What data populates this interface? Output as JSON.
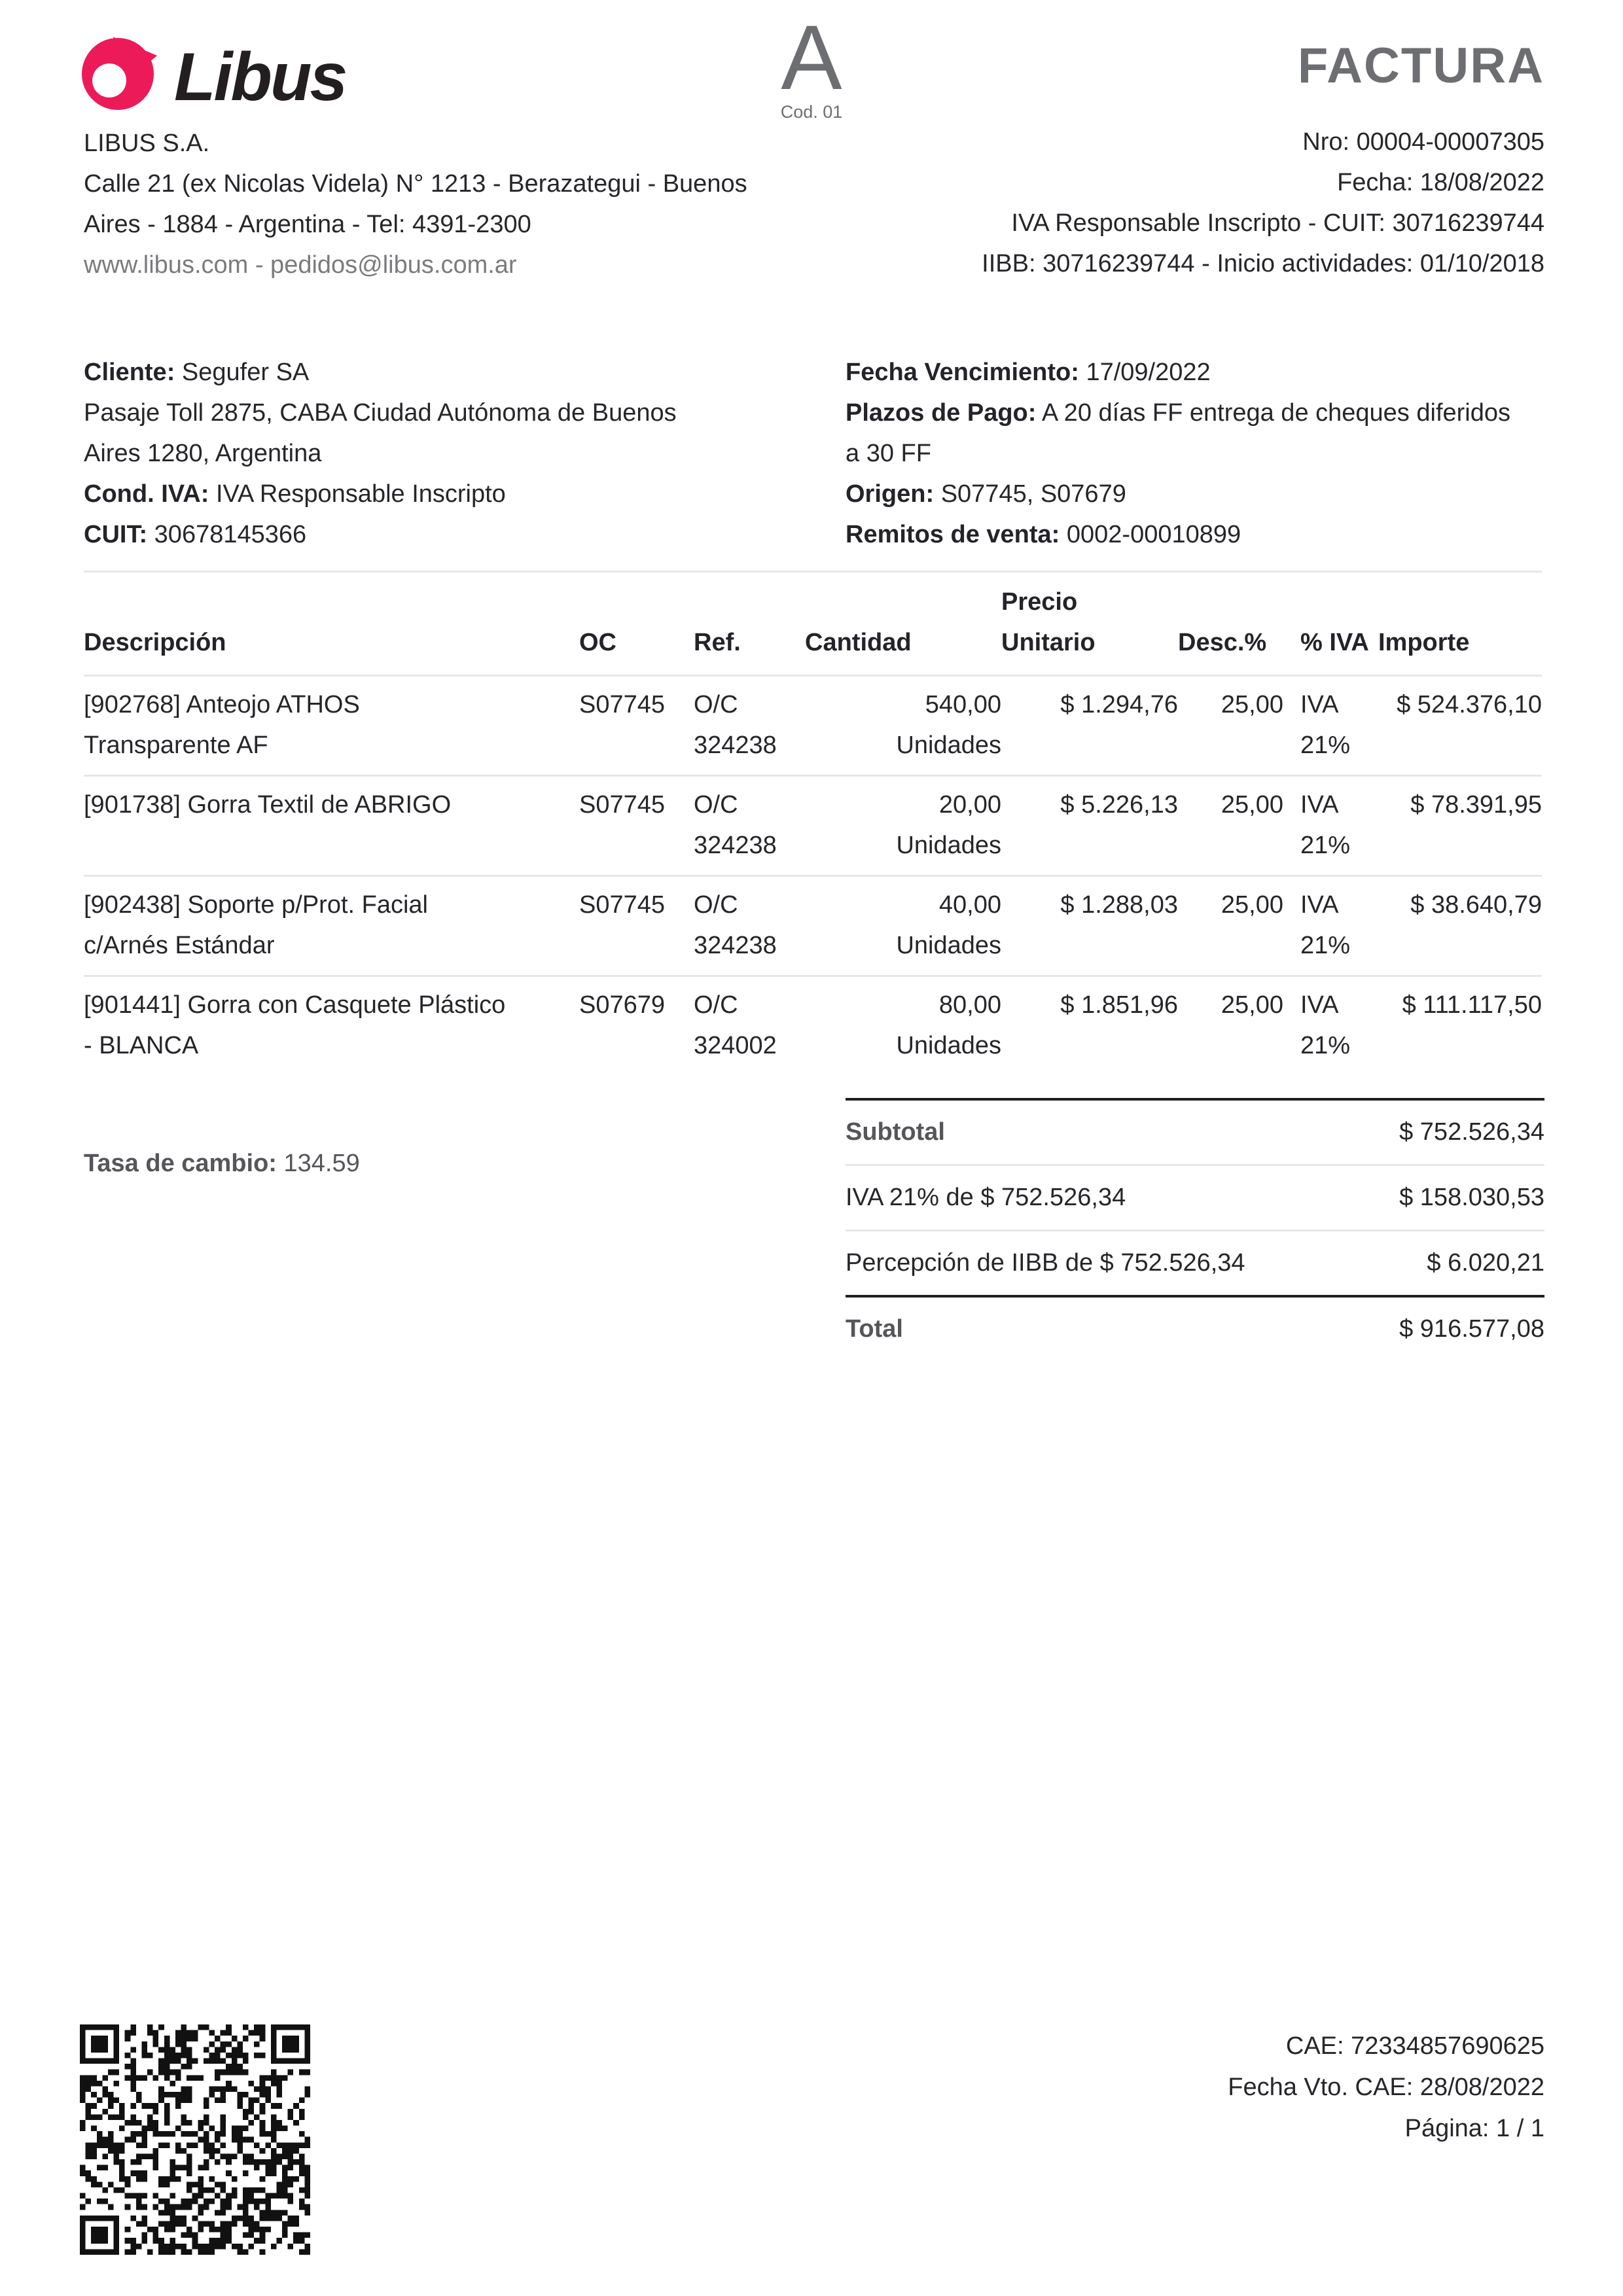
{
  "colors": {
    "brand_pink": "#ED1A59",
    "heading_gray": "#6D6E71",
    "text": "#26262A",
    "muted_gray": "#7B7B7E",
    "label_gray": "#55565A",
    "line_light": "#E4E7EA",
    "line_dark": "#1F1F23"
  },
  "icons": {
    "logo": "libus-ring-icon",
    "qr": "qr-code-icon"
  },
  "brand": {
    "wordmark": "Libus",
    "company_name": "LIBUS S.A.",
    "address": "Calle 21 (ex Nicolas Videla) N° 1213 - Berazategui - Buenos\nAires - 1884 - Argentina - Tel: 4391-2300",
    "contact": "www.libus.com - pedidos@libus.com.ar"
  },
  "doc": {
    "type_letter": "A",
    "type_code": "Cod. 01",
    "title": "FACTURA",
    "number": "Nro: 00004-00007305",
    "date": "Fecha: 18/08/2022",
    "tax_status": "IVA Responsable Inscripto - CUIT: 30716239744",
    "iibb": "IIBB: 30716239744 - Inicio actividades: 01/10/2018"
  },
  "client": {
    "cliente_label": "Cliente:",
    "cliente": "Segufer SA",
    "address": "Pasaje Toll 2875, CABA Ciudad Autónoma de Buenos\nAires 1280, Argentina",
    "cond_iva_label": "Cond. IVA:",
    "cond_iva": "IVA Responsable Inscripto",
    "cuit_label": "CUIT:",
    "cuit": "30678145366",
    "venc_label": "Fecha Vencimiento:",
    "venc": "17/09/2022",
    "plazos_label": "Plazos de Pago:",
    "plazos": "A 20 días FF entrega de cheques diferidos\na 30 FF",
    "origen_label": "Origen:",
    "origen": "S07745, S07679",
    "remitos_label": "Remitos de venta:",
    "remitos": "0002-00010899"
  },
  "table": {
    "headers": {
      "descripcion": "Descripción",
      "oc": "OC",
      "ref": "Ref.",
      "cantidad": "Cantidad",
      "precio_unitario": "Precio\nUnitario",
      "desc_pct": "Desc.%",
      "iva": "% IVA",
      "importe": "Importe"
    },
    "rows": [
      {
        "descripcion": "[902768] Anteojo ATHOS\nTransparente AF",
        "oc": "S07745",
        "ref": "O/C\n324238",
        "cantidad": "540,00\nUnidades",
        "precio": "$ 1.294,76",
        "desc": "25,00",
        "iva": "IVA\n21%",
        "importe": "$ 524.376,10"
      },
      {
        "descripcion": "[901738] Gorra Textil de ABRIGO",
        "oc": "S07745",
        "ref": "O/C\n324238",
        "cantidad": "20,00\nUnidades",
        "precio": "$ 5.226,13",
        "desc": "25,00",
        "iva": "IVA\n21%",
        "importe": "$ 78.391,95"
      },
      {
        "descripcion": "[902438] Soporte p/Prot. Facial\nc/Arnés Estándar",
        "oc": "S07745",
        "ref": "O/C\n324238",
        "cantidad": "40,00\nUnidades",
        "precio": "$ 1.288,03",
        "desc": "25,00",
        "iva": "IVA\n21%",
        "importe": "$ 38.640,79"
      },
      {
        "descripcion": "[901441] Gorra con Casquete Plástico\n- BLANCA",
        "oc": "S07679",
        "ref": "O/C\n324002",
        "cantidad": "80,00\nUnidades",
        "precio": "$ 1.851,96",
        "desc": "25,00",
        "iva": "IVA\n21%",
        "importe": "$ 111.117,50"
      }
    ]
  },
  "exchange": {
    "tasa_label": "Tasa de cambio:",
    "tasa": "134.59"
  },
  "totals": {
    "rows": [
      {
        "label": "Subtotal",
        "value": "$ 752.526,34"
      },
      {
        "label": "IVA 21% de $ 752.526,34",
        "value": "$ 158.030,53"
      },
      {
        "label": "Percepción de IIBB de $ 752.526,34",
        "value": "$ 6.020,21"
      },
      {
        "label": "Total",
        "value": "$ 916.577,08"
      }
    ]
  },
  "footer": {
    "cae": "CAE: 72334857690625",
    "cae_vto": "Fecha Vto. CAE: 28/08/2022",
    "pagina": "Página: 1 / 1"
  }
}
